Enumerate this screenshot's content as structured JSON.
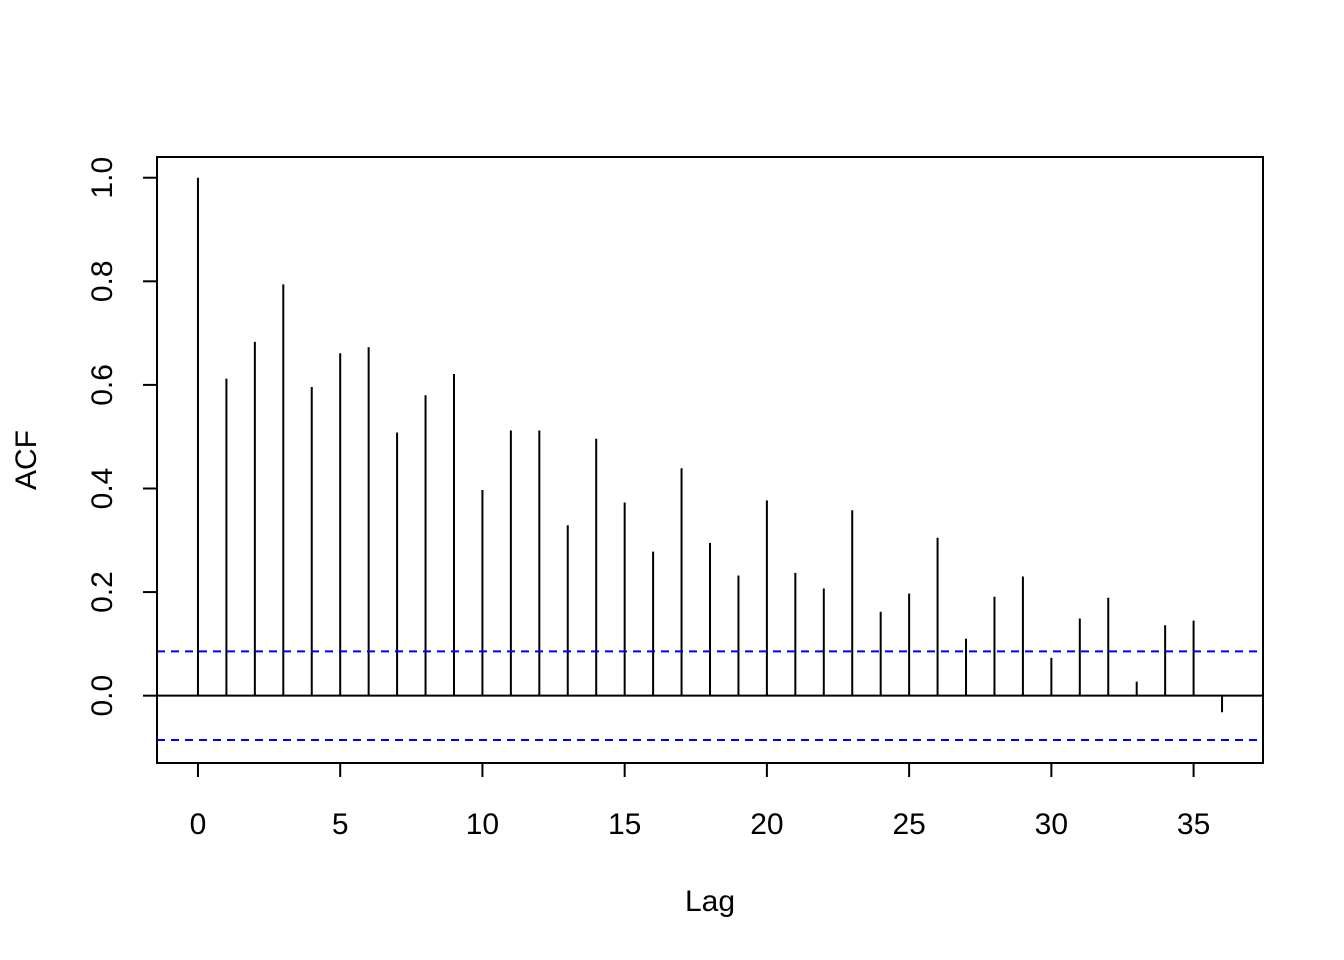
{
  "chart_data": {
    "type": "bar",
    "title": "",
    "xlabel": "Lag",
    "ylabel": "ACF",
    "xlim": [
      -1.44,
      37.44
    ],
    "ylim": [
      -0.13,
      1.04
    ],
    "x_ticks": [
      0,
      5,
      10,
      15,
      20,
      25,
      30,
      35
    ],
    "x_tick_labels": [
      "0",
      "5",
      "10",
      "15",
      "20",
      "25",
      "30",
      "35"
    ],
    "y_ticks": [
      0.0,
      0.2,
      0.4,
      0.6,
      0.8,
      1.0
    ],
    "y_tick_labels": [
      "0.0",
      "0.2",
      "0.4",
      "0.6",
      "0.8",
      "1.0"
    ],
    "lags": [
      0,
      1,
      2,
      3,
      4,
      5,
      6,
      7,
      8,
      9,
      10,
      11,
      12,
      13,
      14,
      15,
      16,
      17,
      18,
      19,
      20,
      21,
      22,
      23,
      24,
      25,
      26,
      27,
      28,
      29,
      30,
      31,
      32,
      33,
      34,
      35,
      36
    ],
    "acf": [
      1.0,
      0.612,
      0.683,
      0.794,
      0.596,
      0.661,
      0.673,
      0.508,
      0.58,
      0.621,
      0.397,
      0.512,
      0.512,
      0.329,
      0.496,
      0.373,
      0.278,
      0.439,
      0.295,
      0.232,
      0.377,
      0.237,
      0.207,
      0.358,
      0.162,
      0.197,
      0.305,
      0.11,
      0.191,
      0.23,
      0.073,
      0.149,
      0.189,
      0.027,
      0.136,
      0.145,
      -0.032
    ],
    "confidence_bound": 0.0855,
    "zero_line": true,
    "grid": false,
    "legend": "none",
    "colors": {
      "spikes": "#000000",
      "confidence_lines": "#0000ff",
      "axes": "#000000"
    }
  }
}
